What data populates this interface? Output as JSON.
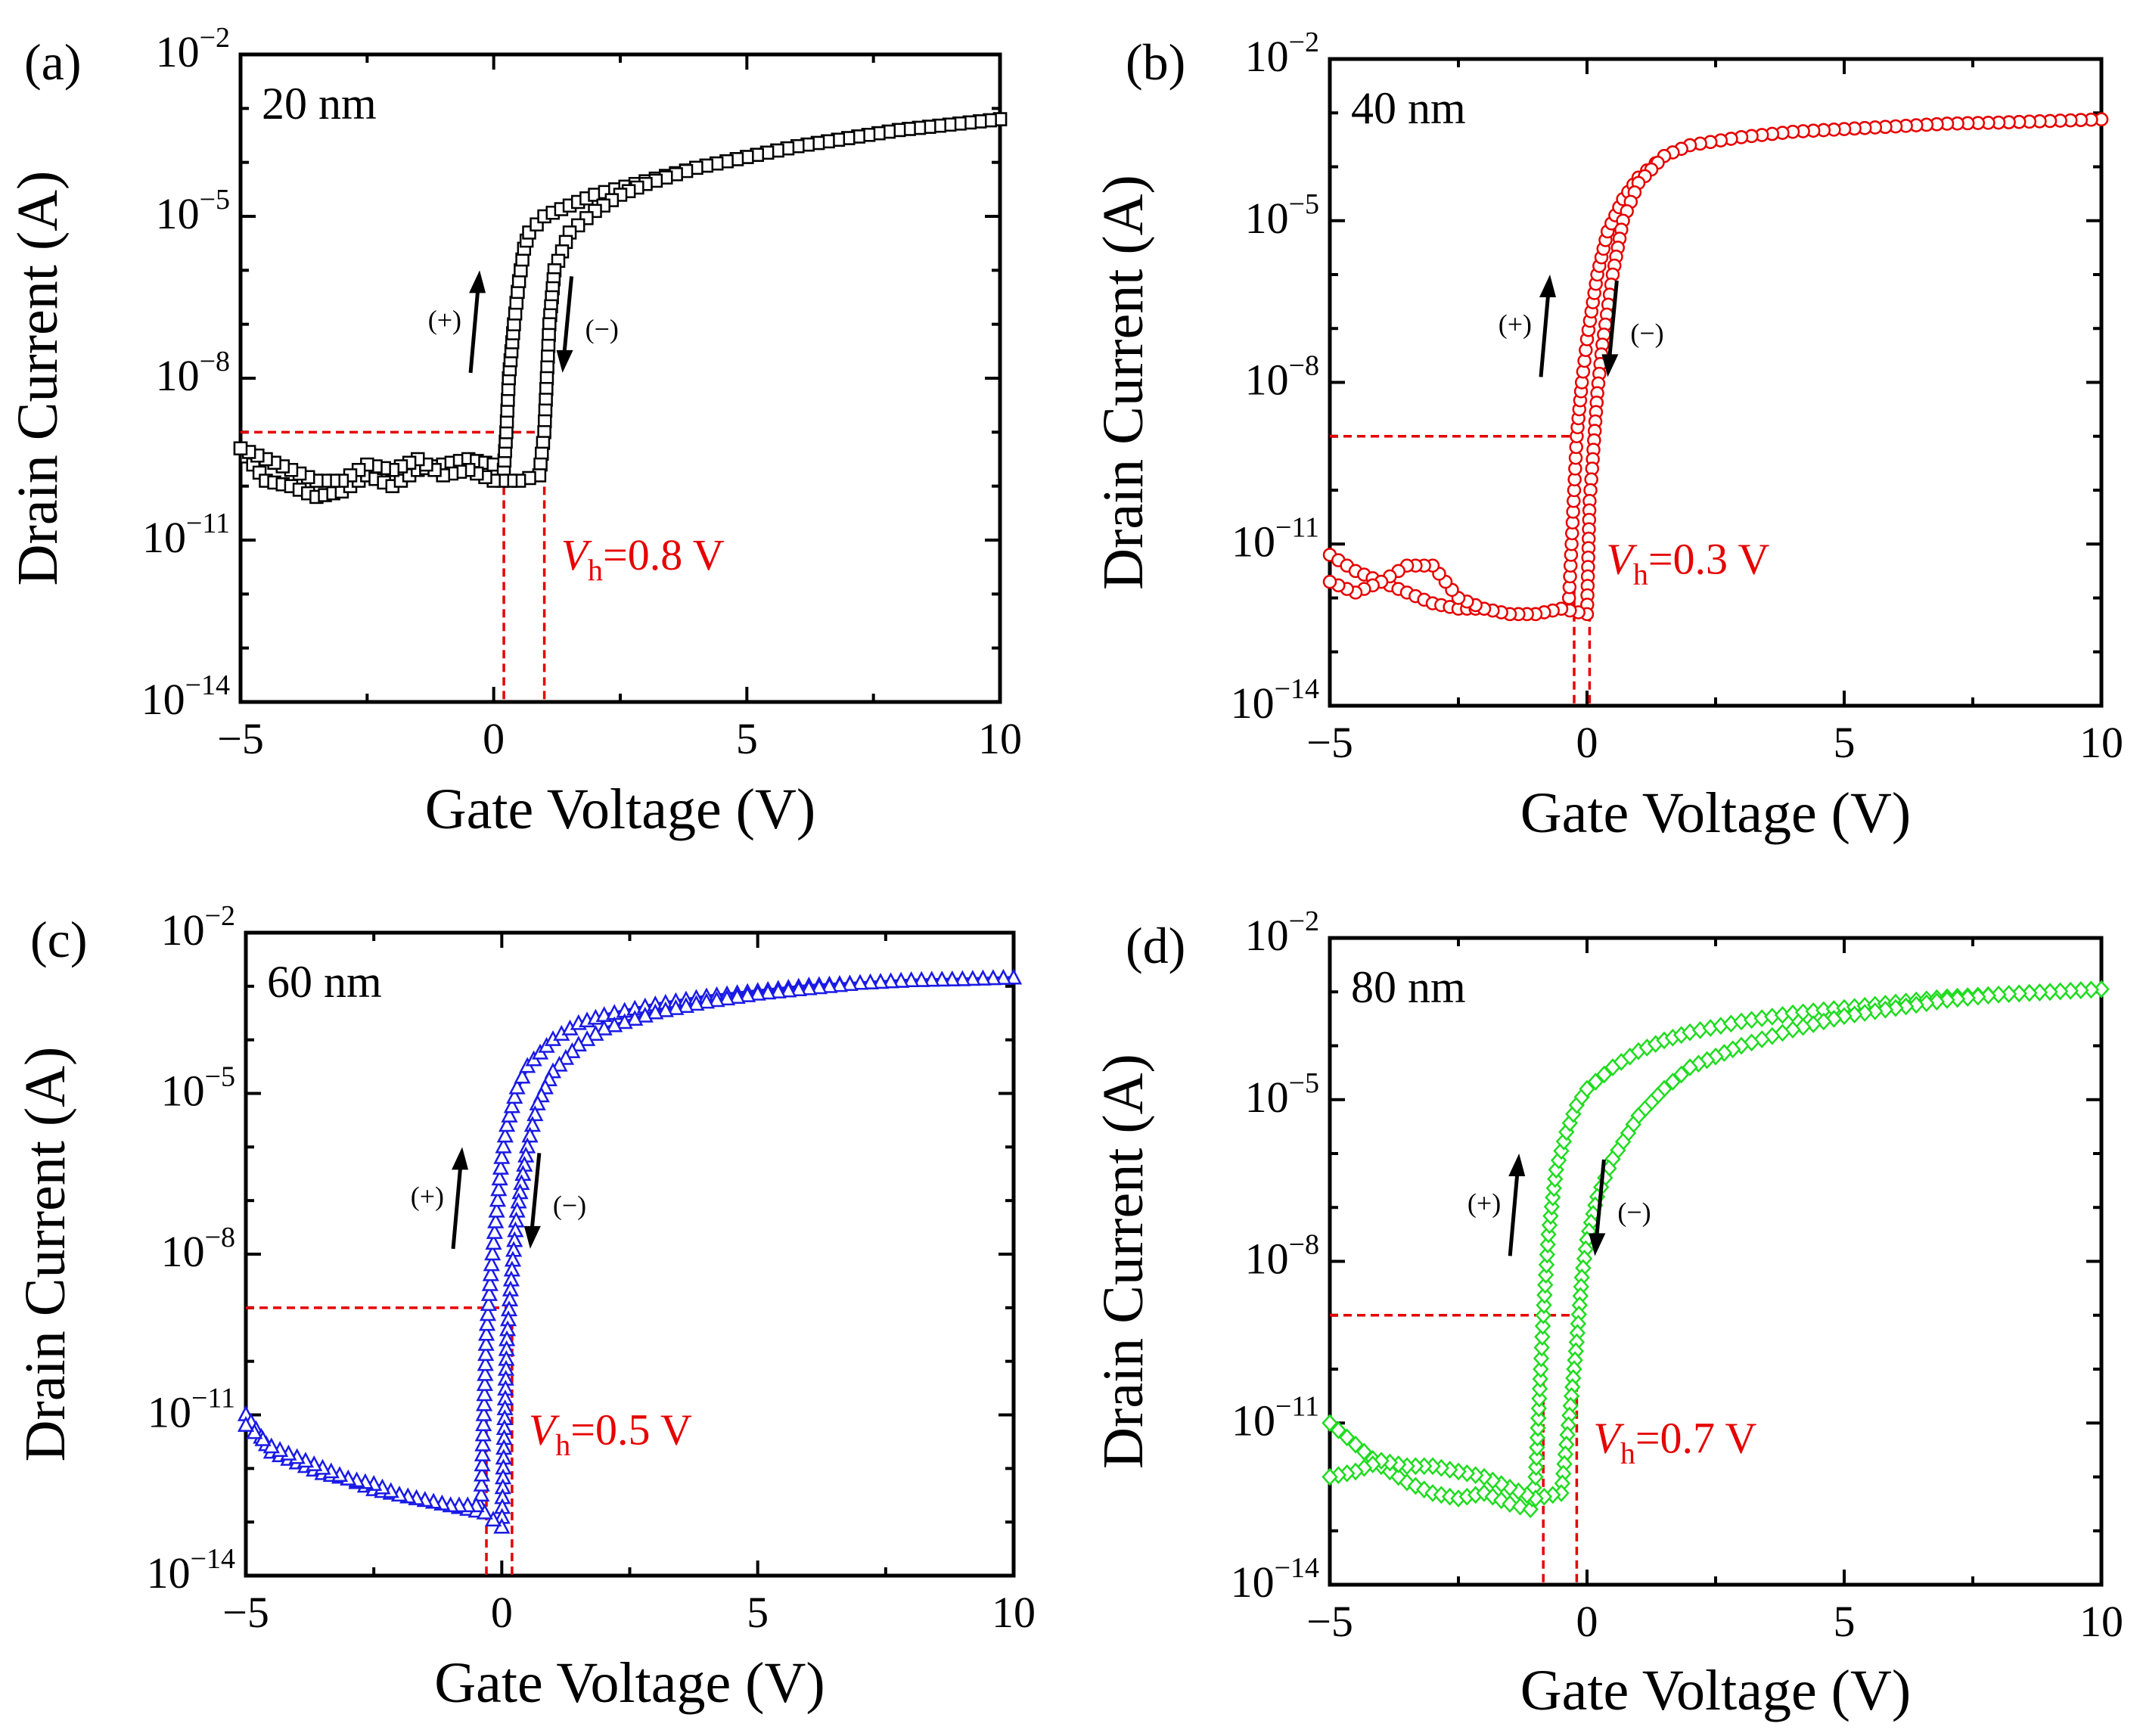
{
  "chart_data": [
    {
      "type": "scatter",
      "panel_label": "(a)",
      "annotation": "20 nm",
      "xlabel": "Gate Voltage (V)",
      "ylabel": "Drain Current (A)",
      "xlim": [
        -5,
        10
      ],
      "ylim_log10": [
        -14,
        -2
      ],
      "x_ticks": [
        "−5",
        "0",
        "5",
        "10"
      ],
      "y_ticks": [
        {
          "base": "10",
          "exp": "−2"
        },
        {
          "base": "10",
          "exp": "−5"
        },
        {
          "base": "10",
          "exp": "−8"
        },
        {
          "base": "10",
          "exp": "−11"
        },
        {
          "base": "10",
          "exp": "−14"
        }
      ],
      "color": "#000000",
      "marker": "square",
      "line_color": "#000000",
      "vh_text_prefix": "V",
      "vh_text_sub": "h",
      "vh_text_suffix": "=0.8 V",
      "vh_color": "#e60000",
      "vh_value": 0.8,
      "vline_x": [
        0.2,
        1.0
      ],
      "hline_log_current": -9.0,
      "sweep_up": "(+)",
      "sweep_down": "(−)",
      "series": [
        {
          "name": "forward (+)",
          "x": [
            -5,
            -4.5,
            -4,
            -3.5,
            -3,
            -2.5,
            -2,
            -1.5,
            -1,
            -0.5,
            0,
            0.2,
            0.25,
            0.3,
            0.4,
            0.5,
            0.6,
            0.7,
            1,
            1.5,
            2,
            3,
            4,
            5,
            6,
            7,
            8,
            9,
            10
          ],
          "log_current": [
            -9.3,
            -9.9,
            -10.0,
            -10.2,
            -10.1,
            -9.8,
            -10.0,
            -9.7,
            -9.6,
            -9.5,
            -9.6,
            -9.7,
            -9.0,
            -8.0,
            -7.0,
            -6.2,
            -5.6,
            -5.3,
            -5.0,
            -4.8,
            -4.6,
            -4.35,
            -4.1,
            -3.9,
            -3.7,
            -3.55,
            -3.4,
            -3.3,
            -3.2
          ]
        },
        {
          "name": "reverse (−)",
          "x": [
            10,
            9,
            8,
            7,
            6,
            5,
            4,
            3,
            2.5,
            2,
            1.5,
            1.2,
            1.1,
            1.05,
            1.0,
            0.9,
            0.5,
            0,
            -0.5,
            -1,
            -1.5,
            -2,
            -2.5,
            -3,
            -3.5,
            -4,
            -4.5,
            -5
          ],
          "log_current": [
            -3.2,
            -3.3,
            -3.4,
            -3.55,
            -3.7,
            -3.9,
            -4.1,
            -4.4,
            -4.6,
            -4.9,
            -5.3,
            -6.0,
            -7.0,
            -8.0,
            -9.0,
            -9.8,
            -9.9,
            -9.9,
            -9.7,
            -9.8,
            -9.5,
            -9.7,
            -9.6,
            -9.9,
            -9.9,
            -9.7,
            -9.5,
            -9.3
          ]
        }
      ]
    },
    {
      "type": "scatter",
      "panel_label": "(b)",
      "annotation": "40 nm",
      "xlabel": "Gate Voltage (V)",
      "ylabel": "Drain Current (A)",
      "xlim": [
        -5,
        10
      ],
      "ylim_log10": [
        -14,
        -2
      ],
      "x_ticks": [
        "−5",
        "0",
        "5",
        "10"
      ],
      "y_ticks": [
        {
          "base": "10",
          "exp": "−2"
        },
        {
          "base": "10",
          "exp": "−5"
        },
        {
          "base": "10",
          "exp": "−8"
        },
        {
          "base": "10",
          "exp": "−11"
        },
        {
          "base": "10",
          "exp": "−14"
        }
      ],
      "color": "#e60000",
      "marker": "circle",
      "line_color": "#e60000",
      "vh_text_prefix": "V",
      "vh_text_sub": "h",
      "vh_text_suffix": "=0.3 V",
      "vh_color": "#e60000",
      "vh_value": 0.3,
      "vline_x": [
        -0.25,
        0.05
      ],
      "hline_log_current": -9.0,
      "sweep_up": "(+)",
      "sweep_down": "(−)",
      "series": [
        {
          "name": "forward (+)",
          "x": [
            -5,
            -4.5,
            -4,
            -3.5,
            -3,
            -2.5,
            -2,
            -1.5,
            -1,
            -0.5,
            -0.35,
            -0.3,
            -0.25,
            -0.2,
            -0.1,
            0,
            0.2,
            0.4,
            0.7,
            1,
            1.5,
            2,
            3,
            4,
            5,
            6,
            7,
            8,
            9,
            10
          ],
          "log_current": [
            -11.2,
            -11.5,
            -11.7,
            -11.9,
            -12.1,
            -12.2,
            -12.2,
            -12.3,
            -12.3,
            -12.2,
            -12.0,
            -11.0,
            -10.0,
            -9.0,
            -8.0,
            -7.2,
            -6.0,
            -5.2,
            -4.6,
            -4.2,
            -3.8,
            -3.6,
            -3.45,
            -3.35,
            -3.3,
            -3.25,
            -3.2,
            -3.18,
            -3.15,
            -3.12
          ]
        },
        {
          "name": "reverse (−)",
          "x": [
            10,
            9,
            8,
            7,
            6,
            5,
            4,
            3,
            2,
            1.5,
            1,
            0.7,
            0.5,
            0.3,
            0.2,
            0.1,
            0.05,
            0,
            -0.5,
            -1,
            -1.5,
            -2,
            -2.5,
            -3,
            -3.5,
            -4,
            -4.5,
            -5
          ],
          "log_current": [
            -3.12,
            -3.15,
            -3.18,
            -3.2,
            -3.25,
            -3.3,
            -3.35,
            -3.45,
            -3.6,
            -3.8,
            -4.3,
            -5.0,
            -6.0,
            -7.3,
            -8.2,
            -9.6,
            -10.2,
            -12.3,
            -12.2,
            -12.3,
            -12.3,
            -12.2,
            -12.0,
            -11.4,
            -11.4,
            -11.7,
            -11.9,
            -11.7
          ]
        }
      ]
    },
    {
      "type": "scatter",
      "panel_label": "(c)",
      "annotation": "60 nm",
      "xlabel": "Gate Voltage (V)",
      "ylabel": "Drain Current (A)",
      "xlim": [
        -5,
        10
      ],
      "ylim_log10": [
        -14,
        -2
      ],
      "x_ticks": [
        "−5",
        "0",
        "5",
        "10"
      ],
      "y_ticks": [
        {
          "base": "10",
          "exp": "−2"
        },
        {
          "base": "10",
          "exp": "−5"
        },
        {
          "base": "10",
          "exp": "−8"
        },
        {
          "base": "10",
          "exp": "−11"
        },
        {
          "base": "10",
          "exp": "−14"
        }
      ],
      "color": "#1a1ae6",
      "marker": "triangle",
      "line_color": "#1a1ae6",
      "vh_text_prefix": "V",
      "vh_text_sub": "h",
      "vh_text_suffix": "=0.5 V",
      "vh_color": "#e60000",
      "vh_value": 0.5,
      "vline_x": [
        -0.3,
        0.2
      ],
      "hline_log_current": -9.0,
      "sweep_up": "(+)",
      "sweep_down": "(−)",
      "series": [
        {
          "name": "forward (+)",
          "x": [
            -5,
            -4.5,
            -4,
            -3.5,
            -3,
            -2.5,
            -2,
            -1.5,
            -1,
            -0.5,
            -0.4,
            -0.35,
            -0.3,
            -0.2,
            -0.1,
            0,
            0.1,
            0.3,
            0.5,
            1,
            1.5,
            2,
            3,
            4,
            5,
            6,
            7,
            8,
            9,
            10
          ],
          "log_current": [
            -11.0,
            -11.7,
            -11.9,
            -12.1,
            -12.2,
            -12.4,
            -12.5,
            -12.6,
            -12.7,
            -12.8,
            -12.5,
            -11.0,
            -9.5,
            -8.2,
            -7.2,
            -6.2,
            -5.6,
            -4.9,
            -4.5,
            -4.0,
            -3.7,
            -3.55,
            -3.35,
            -3.2,
            -3.1,
            -3.0,
            -2.95,
            -2.9,
            -2.88,
            -2.85
          ]
        },
        {
          "name": "reverse (−)",
          "x": [
            10,
            9,
            8,
            7,
            6,
            5,
            4,
            3,
            2,
            1.5,
            1,
            0.7,
            0.5,
            0.3,
            0.2,
            0.1,
            0,
            -0.5,
            -1,
            -1.5,
            -2,
            -2.5,
            -3,
            -3.5,
            -4,
            -4.5,
            -5
          ],
          "log_current": [
            -2.85,
            -2.88,
            -2.9,
            -2.95,
            -3.05,
            -3.15,
            -3.3,
            -3.5,
            -3.8,
            -4.1,
            -4.6,
            -5.2,
            -6.0,
            -7.2,
            -8.3,
            -9.6,
            -13.1,
            -12.7,
            -12.7,
            -12.6,
            -12.5,
            -12.3,
            -12.2,
            -12.0,
            -11.8,
            -11.6,
            -11.2
          ]
        }
      ]
    },
    {
      "type": "scatter",
      "panel_label": "(d)",
      "annotation": "80 nm",
      "xlabel": "Gate Voltage (V)",
      "ylabel": "Drain Current (A)",
      "xlim": [
        -5,
        10
      ],
      "ylim_log10": [
        -14,
        -2
      ],
      "x_ticks": [
        "−5",
        "0",
        "5",
        "10"
      ],
      "y_ticks": [
        {
          "base": "10",
          "exp": "−2"
        },
        {
          "base": "10",
          "exp": "−5"
        },
        {
          "base": "10",
          "exp": "−8"
        },
        {
          "base": "10",
          "exp": "−11"
        },
        {
          "base": "10",
          "exp": "−14"
        }
      ],
      "color": "#1fdc1f",
      "marker": "diamond",
      "line_color": "#1fdc1f",
      "vh_text_prefix": "V",
      "vh_text_sub": "h",
      "vh_text_suffix": "=0.7 V",
      "vh_color": "#e60000",
      "vh_value": 0.7,
      "vline_x": [
        -0.85,
        -0.2
      ],
      "hline_log_current": -9.0,
      "sweep_up": "(+)",
      "sweep_down": "(−)",
      "series": [
        {
          "name": "forward (+)",
          "x": [
            -5,
            -4.5,
            -4,
            -3.5,
            -3,
            -2.5,
            -2,
            -1.5,
            -1.1,
            -1.0,
            -0.9,
            -0.85,
            -0.75,
            -0.6,
            -0.4,
            -0.2,
            0,
            0.5,
            1,
            1.5,
            2,
            3,
            4,
            5,
            6,
            7,
            8,
            9,
            10
          ],
          "log_current": [
            -11.0,
            -11.4,
            -11.8,
            -12.1,
            -12.3,
            -12.4,
            -12.3,
            -12.5,
            -12.6,
            -12.0,
            -10.0,
            -9.0,
            -7.5,
            -6.3,
            -5.6,
            -5.1,
            -4.8,
            -4.4,
            -4.1,
            -3.9,
            -3.75,
            -3.55,
            -3.4,
            -3.3,
            -3.2,
            -3.1,
            -3.05,
            -3.0,
            -2.95
          ]
        },
        {
          "name": "reverse (−)",
          "x": [
            10,
            9,
            8,
            7,
            6,
            5,
            4,
            3,
            2,
            1.5,
            1,
            0.5,
            0.2,
            0,
            -0.1,
            -0.2,
            -0.3,
            -0.5,
            -1,
            -1.5,
            -2,
            -2.5,
            -3,
            -3.5,
            -4,
            -4.5,
            -5
          ],
          "log_current": [
            -2.95,
            -3.0,
            -3.05,
            -3.15,
            -3.3,
            -3.45,
            -3.7,
            -4.0,
            -4.4,
            -4.8,
            -5.3,
            -6.1,
            -6.8,
            -7.6,
            -8.3,
            -9.5,
            -10.5,
            -12.3,
            -12.4,
            -12.2,
            -12.0,
            -11.9,
            -11.8,
            -11.8,
            -11.7,
            -11.9,
            -12.0
          ]
        }
      ]
    }
  ]
}
